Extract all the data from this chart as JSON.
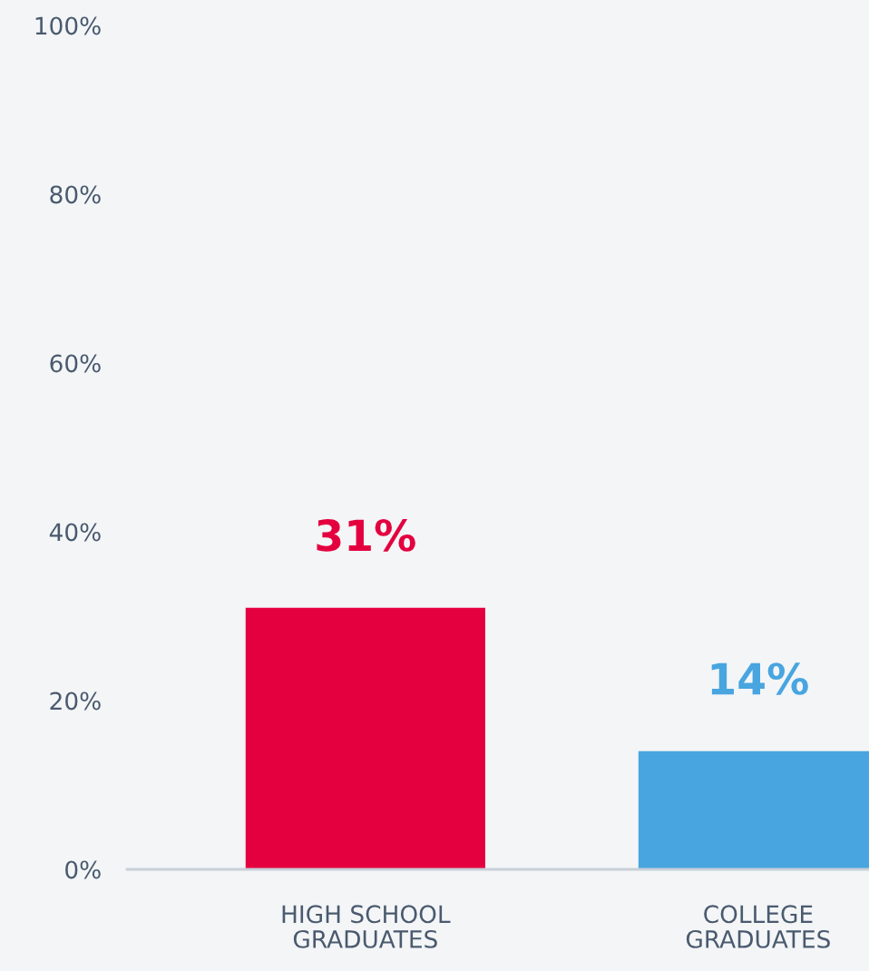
{
  "chart_data": {
    "type": "bar",
    "categories": [
      "HIGH SCHOOL\nGRADUATES",
      "COLLEGE\nGRADUATES"
    ],
    "values": [
      31,
      14
    ],
    "colors": [
      "#e4003f",
      "#48a5e0"
    ],
    "ylim": [
      0,
      100
    ],
    "yticks": [
      {
        "value": 0,
        "label": "0%"
      },
      {
        "value": 20,
        "label": "20%"
      },
      {
        "value": 40,
        "label": "40%"
      },
      {
        "value": 60,
        "label": "60%"
      },
      {
        "value": 80,
        "label": "80%"
      },
      {
        "value": 100,
        "label": "100%"
      }
    ],
    "value_labels": [
      "31%",
      "14%"
    ],
    "grid": false,
    "legend": false
  }
}
